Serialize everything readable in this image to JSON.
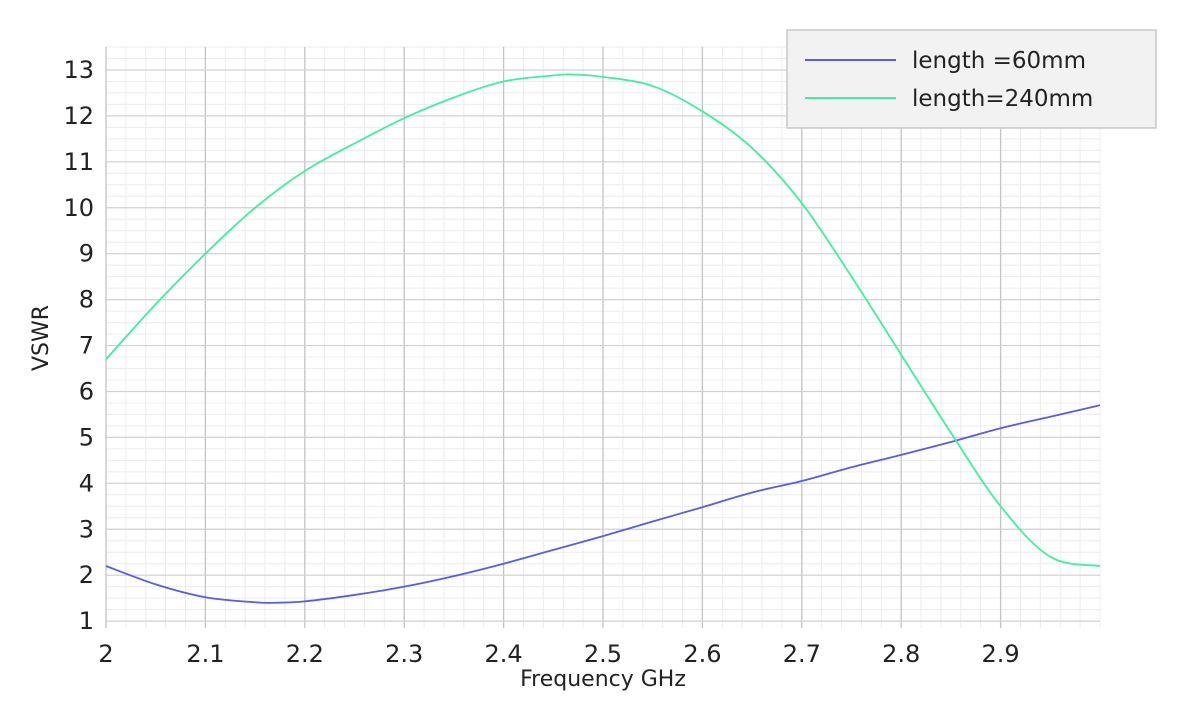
{
  "chart_data": {
    "type": "line",
    "xlabel": "Frequency GHz",
    "ylabel": "VSWR",
    "xlim": [
      2.0,
      3.0
    ],
    "ylim": [
      0.85,
      13.5
    ],
    "x_ticks": [
      2,
      2.1,
      2.2,
      2.3,
      2.4,
      2.5,
      2.6,
      2.7,
      2.8,
      2.9
    ],
    "x_tick_labels": [
      "2",
      "2.1",
      "2.2",
      "2.3",
      "2.4",
      "2.5",
      "2.6",
      "2.7",
      "2.8",
      "2.9"
    ],
    "y_ticks": [
      1,
      2,
      3,
      4,
      5,
      6,
      7,
      8,
      9,
      10,
      11,
      12,
      13
    ],
    "y_tick_labels": [
      "1",
      "2",
      "3",
      "4",
      "5",
      "6",
      "7",
      "8",
      "9",
      "10",
      "11",
      "12",
      "13"
    ],
    "grid": true,
    "legend_position": "top-right",
    "series": [
      {
        "name": "length =60mm",
        "color": "#5a5af0",
        "x": [
          2.0,
          2.05,
          2.1,
          2.15,
          2.17,
          2.2,
          2.25,
          2.3,
          2.35,
          2.4,
          2.45,
          2.5,
          2.55,
          2.6,
          2.65,
          2.7,
          2.75,
          2.8,
          2.85,
          2.9,
          2.95,
          3.0
        ],
        "values": [
          2.2,
          1.8,
          1.52,
          1.41,
          1.4,
          1.43,
          1.57,
          1.75,
          1.98,
          2.25,
          2.55,
          2.85,
          3.17,
          3.48,
          3.8,
          4.05,
          4.35,
          4.62,
          4.9,
          5.2,
          5.45,
          5.7
        ]
      },
      {
        "name": "length=240mm",
        "color": "#3ef0a0",
        "x": [
          2.0,
          2.05,
          2.1,
          2.15,
          2.2,
          2.25,
          2.3,
          2.35,
          2.4,
          2.45,
          2.47,
          2.5,
          2.55,
          2.6,
          2.65,
          2.7,
          2.75,
          2.8,
          2.85,
          2.9,
          2.95,
          3.0
        ],
        "values": [
          6.7,
          7.9,
          9.0,
          10.0,
          10.8,
          11.4,
          11.95,
          12.4,
          12.75,
          12.88,
          12.9,
          12.85,
          12.65,
          12.1,
          11.3,
          10.1,
          8.5,
          6.8,
          5.1,
          3.5,
          2.4,
          2.2
        ]
      }
    ]
  }
}
